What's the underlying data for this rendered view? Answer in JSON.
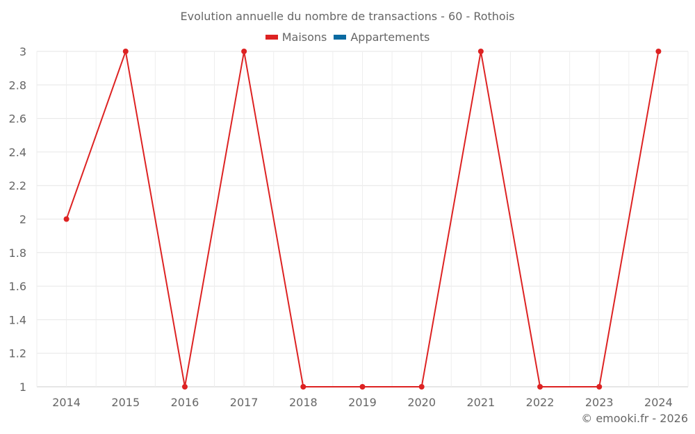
{
  "title": "Evolution annuelle du nombre de transactions - 60 - Rothois",
  "legend": [
    {
      "label": "Maisons",
      "color": "#dd2222"
    },
    {
      "label": "Appartements",
      "color": "#0a6aa1"
    }
  ],
  "credit": "© emooki.fr - 2026",
  "chart_data": {
    "type": "line",
    "title": "Evolution annuelle du nombre de transactions - 60 - Rothois",
    "xlabel": "",
    "ylabel": "",
    "categories": [
      "2014",
      "2015",
      "2016",
      "2017",
      "2018",
      "2019",
      "2020",
      "2021",
      "2022",
      "2023",
      "2024"
    ],
    "series": [
      {
        "name": "Maisons",
        "color": "#dd2222",
        "values": [
          2,
          3,
          1,
          3,
          1,
          1,
          1,
          3,
          1,
          1,
          3
        ]
      },
      {
        "name": "Appartements",
        "color": "#0a6aa1",
        "values": []
      }
    ],
    "yticks": [
      "1",
      "1.2",
      "1.4",
      "1.6",
      "1.8",
      "2",
      "2.2",
      "2.4",
      "2.6",
      "2.8",
      "3"
    ],
    "ylim": [
      1,
      3
    ],
    "grid": true,
    "legend_position": "top"
  }
}
